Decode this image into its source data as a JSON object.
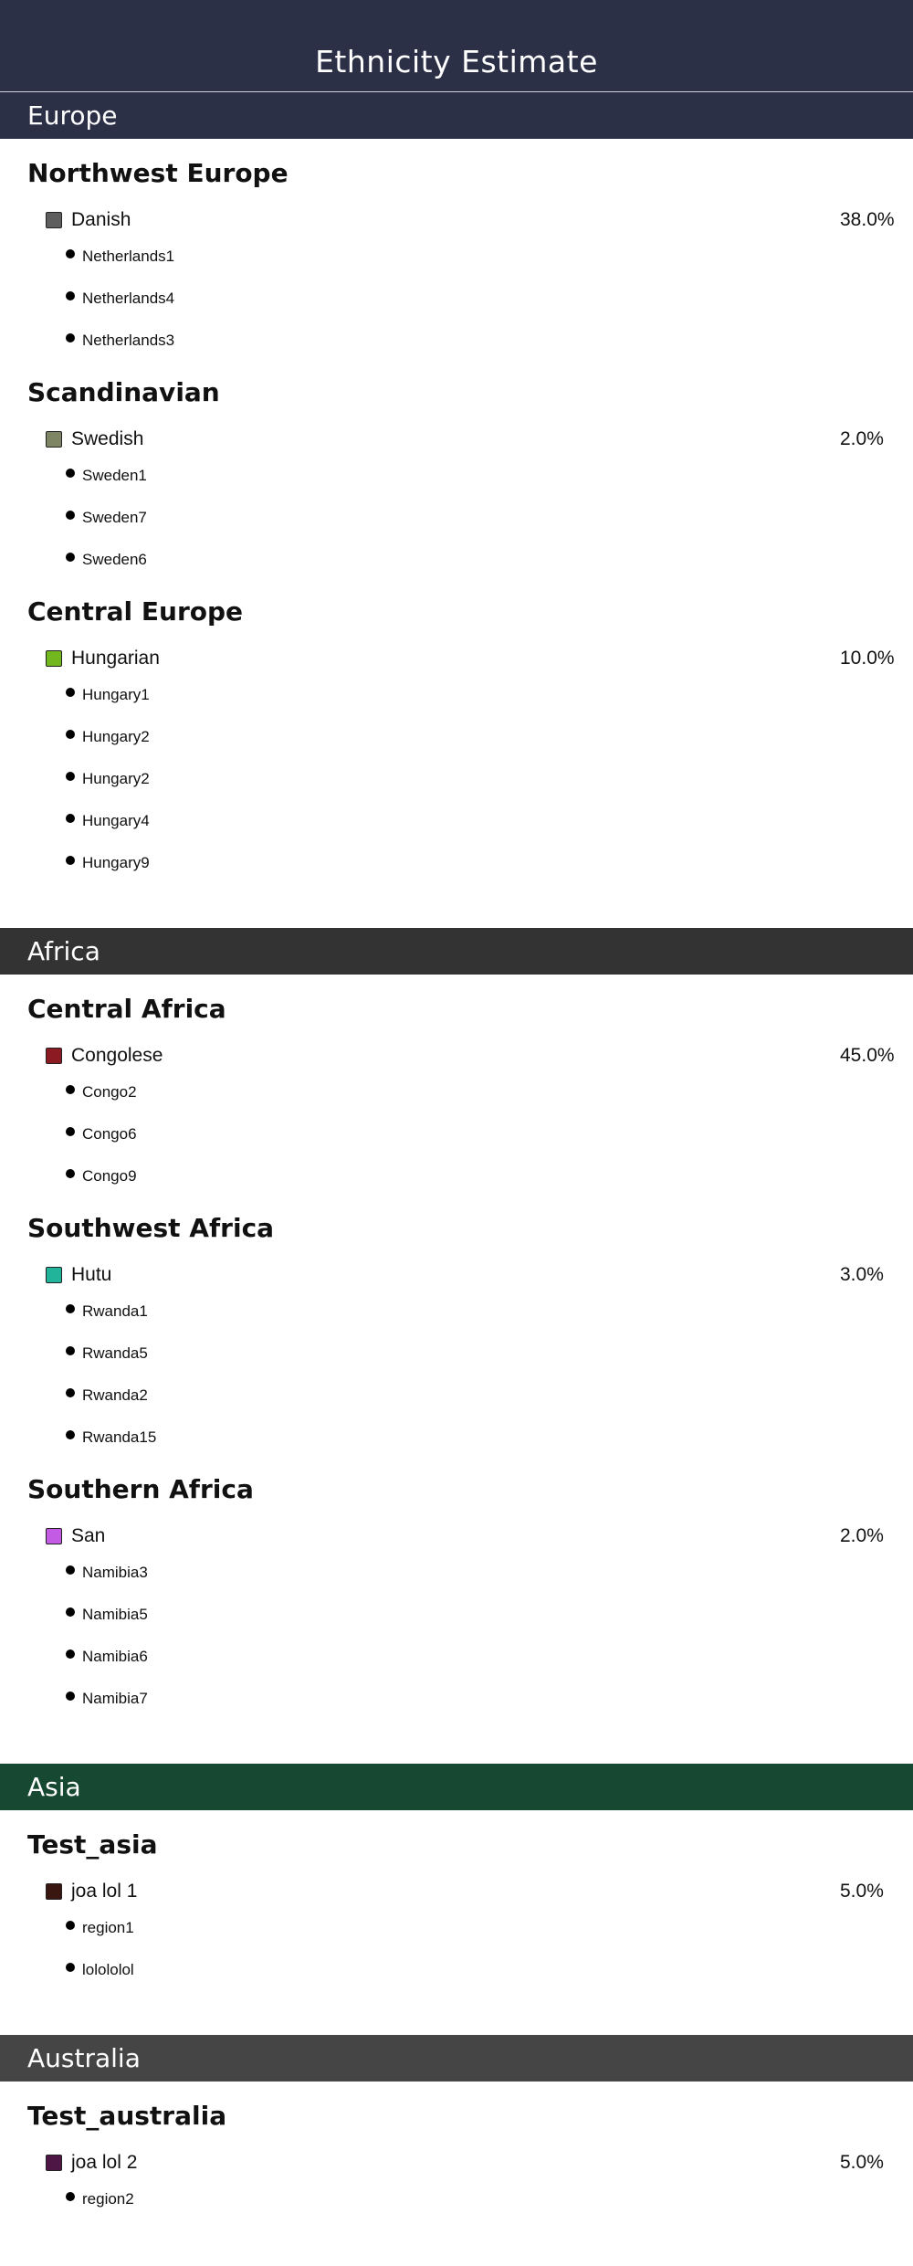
{
  "page": {
    "title": "Ethnicity Estimate"
  },
  "continents": [
    {
      "name": "Europe",
      "color": "#2c3047",
      "groups": [
        {
          "name": "Northwest Europe",
          "ethnicity": "Danish",
          "swatch": "#5e5e5e",
          "percent": "38.0%",
          "regions": [
            "Netherlands1",
            "Netherlands4",
            "Netherlands3"
          ]
        },
        {
          "name": "Scandinavian",
          "ethnicity": "Swedish",
          "swatch": "#7d8565",
          "percent": "2.0%",
          "regions": [
            "Sweden1",
            "Sweden7",
            "Sweden6"
          ]
        },
        {
          "name": "Central Europe",
          "ethnicity": "Hungarian",
          "swatch": "#73b71f",
          "percent": "10.0%",
          "regions": [
            "Hungary1",
            "Hungary2",
            "Hungary2",
            "Hungary4",
            "Hungary9"
          ]
        }
      ]
    },
    {
      "name": "Africa",
      "color": "#333333",
      "groups": [
        {
          "name": "Central Africa",
          "ethnicity": "Congolese",
          "swatch": "#8b1a22",
          "percent": "45.0%",
          "regions": [
            "Congo2",
            "Congo6",
            "Congo9"
          ]
        },
        {
          "name": "Southwest Africa",
          "ethnicity": "Hutu",
          "swatch": "#22b39b",
          "percent": "3.0%",
          "regions": [
            "Rwanda1",
            "Rwanda5",
            "Rwanda2",
            "Rwanda15"
          ]
        },
        {
          "name": "Southern Africa",
          "ethnicity": "San",
          "swatch": "#c35be4",
          "percent": "2.0%",
          "regions": [
            "Namibia3",
            "Namibia5",
            "Namibia6",
            "Namibia7"
          ]
        }
      ]
    },
    {
      "name": "Asia",
      "color": "#164832",
      "groups": [
        {
          "name": "Test_asia",
          "ethnicity": "joa lol 1",
          "swatch": "#3a1610",
          "percent": "5.0%",
          "regions": [
            "region1",
            "lolololol"
          ]
        }
      ]
    },
    {
      "name": "Australia",
      "color": "#454545",
      "groups": [
        {
          "name": "Test_australia",
          "ethnicity": "joa lol 2",
          "swatch": "#4d1644",
          "percent": "5.0%",
          "regions": [
            "region2"
          ]
        }
      ]
    }
  ]
}
